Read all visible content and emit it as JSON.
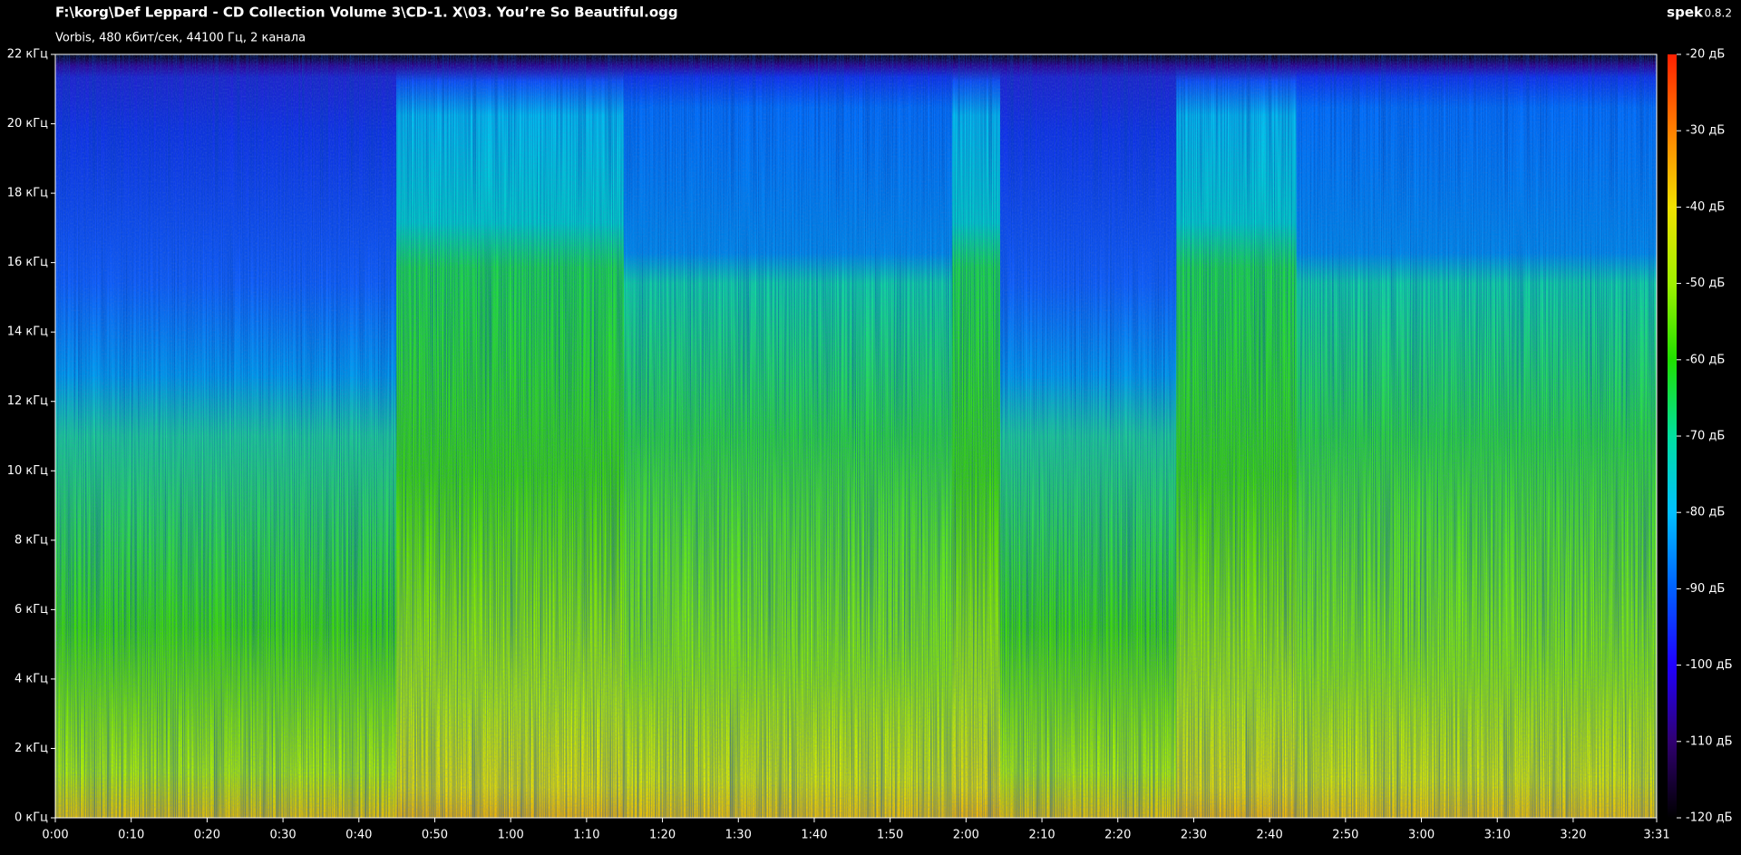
{
  "chart_data": {
    "type": "spectrogram",
    "title": "F:\\korg\\Def Leppard - CD Collection Volume 3\\CD-1. X\\03. You’re So Beautiful.ogg",
    "subtitle": "Vorbis, 480 кбит/сек, 44100 Гц, 2 канала",
    "app_name": "spek",
    "app_version": "0.8.2",
    "xlim": [
      0,
      211
    ],
    "xticks": [
      {
        "value": 0,
        "label": "0:00"
      },
      {
        "value": 10,
        "label": "0:10"
      },
      {
        "value": 20,
        "label": "0:20"
      },
      {
        "value": 30,
        "label": "0:30"
      },
      {
        "value": 40,
        "label": "0:40"
      },
      {
        "value": 50,
        "label": "0:50"
      },
      {
        "value": 60,
        "label": "1:00"
      },
      {
        "value": 70,
        "label": "1:10"
      },
      {
        "value": 80,
        "label": "1:20"
      },
      {
        "value": 90,
        "label": "1:30"
      },
      {
        "value": 100,
        "label": "1:40"
      },
      {
        "value": 110,
        "label": "1:50"
      },
      {
        "value": 120,
        "label": "2:00"
      },
      {
        "value": 130,
        "label": "2:10"
      },
      {
        "value": 140,
        "label": "2:20"
      },
      {
        "value": 150,
        "label": "2:30"
      },
      {
        "value": 160,
        "label": "2:40"
      },
      {
        "value": 170,
        "label": "2:50"
      },
      {
        "value": 180,
        "label": "3:00"
      },
      {
        "value": 190,
        "label": "3:10"
      },
      {
        "value": 200,
        "label": "3:20"
      },
      {
        "value": 211,
        "label": "3:31"
      }
    ],
    "ylim": [
      0,
      22
    ],
    "yticks": [
      {
        "value": 0,
        "label": "0 кГц"
      },
      {
        "value": 2,
        "label": "2 кГц"
      },
      {
        "value": 4,
        "label": "4 кГц"
      },
      {
        "value": 6,
        "label": "6 кГц"
      },
      {
        "value": 8,
        "label": "8 кГц"
      },
      {
        "value": 10,
        "label": "10 кГц"
      },
      {
        "value": 12,
        "label": "12 кГц"
      },
      {
        "value": 14,
        "label": "14 кГц"
      },
      {
        "value": 16,
        "label": "16 кГц"
      },
      {
        "value": 18,
        "label": "18 кГц"
      },
      {
        "value": 20,
        "label": "20 кГц"
      },
      {
        "value": 22,
        "label": "22 кГц"
      }
    ],
    "zlim": [
      -120,
      -20
    ],
    "zticks": [
      {
        "value": -20,
        "label": "-20 дБ"
      },
      {
        "value": -30,
        "label": "-30 дБ"
      },
      {
        "value": -40,
        "label": "-40 дБ"
      },
      {
        "value": -50,
        "label": "-50 дБ"
      },
      {
        "value": -60,
        "label": "-60 дБ"
      },
      {
        "value": -70,
        "label": "-70 дБ"
      },
      {
        "value": -80,
        "label": "-80 дБ"
      },
      {
        "value": -90,
        "label": "-90 дБ"
      },
      {
        "value": -100,
        "label": "-100 дБ"
      },
      {
        "value": -110,
        "label": "-110 дБ"
      },
      {
        "value": -120,
        "label": "-120 дБ"
      }
    ]
  }
}
